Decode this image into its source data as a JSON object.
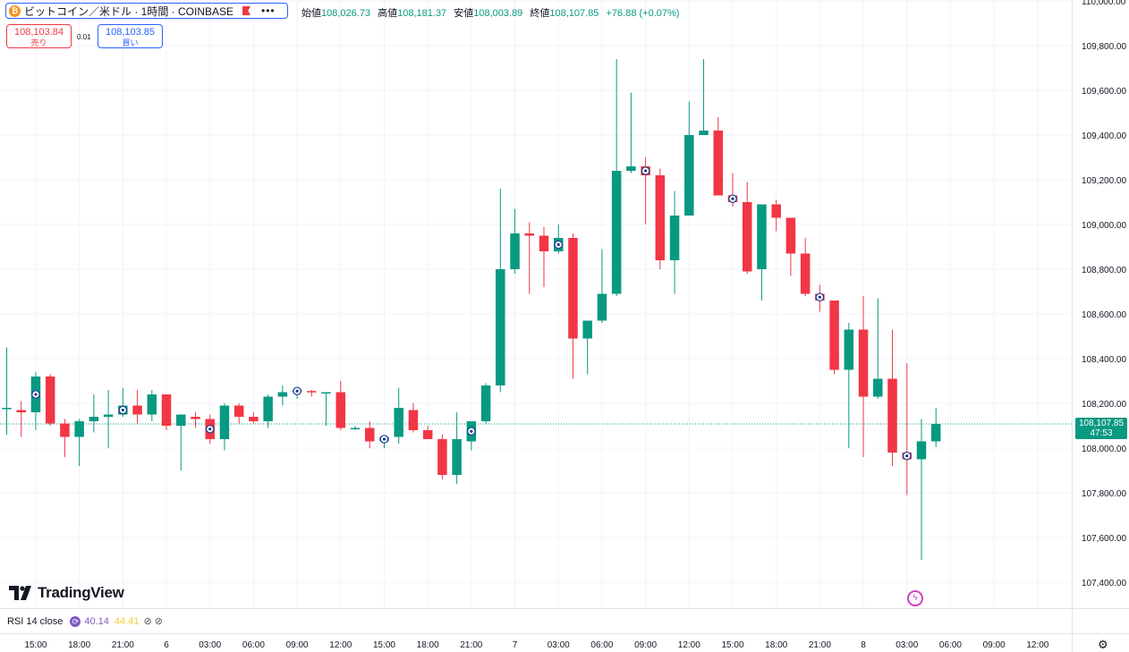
{
  "header": {
    "coin_icon": "bitcoin-icon",
    "symbol": "ビットコイン／米ドル · 1時間 · COINBASE",
    "flag_icon": "flag-icon",
    "more": "•••",
    "ohlc": {
      "o_label": "始値",
      "o": "108,026.73",
      "h_label": "高値",
      "h": "108,181.37",
      "l_label": "安値",
      "l": "108,003.89",
      "c_label": "終値",
      "c": "108,107.85",
      "chg": "+76.88 (+0.07%)"
    }
  },
  "trade": {
    "sell_price": "108,103.84",
    "sell_label": "売り",
    "spread": "0.01",
    "buy_price": "108,103.85",
    "buy_label": "買い"
  },
  "last_price": {
    "price": "108,107.85",
    "countdown": "47:53"
  },
  "brand": {
    "name": "TradingView"
  },
  "rsi": {
    "label": "RSI 14 close",
    "v1": "40.14",
    "v2": "44.41",
    "icons": "⊘ ⊘"
  },
  "colors": {
    "up": "#089981",
    "down": "#f23645",
    "accent": "#2962ff"
  },
  "chart_data": {
    "type": "candlestick",
    "ylim": [
      107300,
      110000
    ],
    "y_ticks": [
      107400,
      107600,
      107800,
      108000,
      108200,
      108400,
      108600,
      108800,
      109000,
      109200,
      109400,
      109600,
      109800,
      110000
    ],
    "y_tick_labels": [
      "107,400.00",
      "107,600.00",
      "107,800.00",
      "108,000.00",
      "108,200.00",
      "108,400.00",
      "108,600.00",
      "108,800.00",
      "109,000.00",
      "109,200.00",
      "109,400.00",
      "109,600.00",
      "109,800.00",
      "110,000.00"
    ],
    "x_ticks": [
      {
        "i": 2,
        "label": "15:00"
      },
      {
        "i": 5,
        "label": "18:00"
      },
      {
        "i": 8,
        "label": "21:00"
      },
      {
        "i": 11,
        "label": "6"
      },
      {
        "i": 14,
        "label": "03:00"
      },
      {
        "i": 17,
        "label": "06:00"
      },
      {
        "i": 20,
        "label": "09:00"
      },
      {
        "i": 23,
        "label": "12:00"
      },
      {
        "i": 26,
        "label": "15:00"
      },
      {
        "i": 29,
        "label": "18:00"
      },
      {
        "i": 32,
        "label": "21:00"
      },
      {
        "i": 35,
        "label": "7"
      },
      {
        "i": 38,
        "label": "03:00"
      },
      {
        "i": 41,
        "label": "06:00"
      },
      {
        "i": 44,
        "label": "09:00"
      },
      {
        "i": 47,
        "label": "12:00"
      },
      {
        "i": 50,
        "label": "15:00"
      },
      {
        "i": 53,
        "label": "18:00"
      },
      {
        "i": 56,
        "label": "21:00"
      },
      {
        "i": 59,
        "label": "8"
      },
      {
        "i": 62,
        "label": "03:00"
      },
      {
        "i": 65,
        "label": "06:00"
      },
      {
        "i": 68,
        "label": "09:00"
      },
      {
        "i": 71,
        "label": "12:00"
      }
    ],
    "candles": [
      {
        "o": 108180,
        "h": 108450,
        "l": 108060,
        "c": 108180
      },
      {
        "o": 108170,
        "h": 108210,
        "l": 108050,
        "c": 108160
      },
      {
        "o": 108160,
        "h": 108340,
        "l": 108080,
        "c": 108320
      },
      {
        "o": 108320,
        "h": 108330,
        "l": 108100,
        "c": 108110
      },
      {
        "o": 108110,
        "h": 108130,
        "l": 107960,
        "c": 108050
      },
      {
        "o": 108050,
        "h": 108130,
        "l": 107920,
        "c": 108120
      },
      {
        "o": 108120,
        "h": 108240,
        "l": 108070,
        "c": 108140
      },
      {
        "o": 108140,
        "h": 108260,
        "l": 108000,
        "c": 108150
      },
      {
        "o": 108150,
        "h": 108270,
        "l": 108140,
        "c": 108190
      },
      {
        "o": 108190,
        "h": 108260,
        "l": 108110,
        "c": 108150
      },
      {
        "o": 108150,
        "h": 108260,
        "l": 108120,
        "c": 108240
      },
      {
        "o": 108240,
        "h": 108240,
        "l": 108080,
        "c": 108100
      },
      {
        "o": 108100,
        "h": 108150,
        "l": 107900,
        "c": 108150
      },
      {
        "o": 108140,
        "h": 108160,
        "l": 108090,
        "c": 108130
      },
      {
        "o": 108130,
        "h": 108150,
        "l": 108020,
        "c": 108040
      },
      {
        "o": 108040,
        "h": 108200,
        "l": 107990,
        "c": 108190
      },
      {
        "o": 108190,
        "h": 108200,
        "l": 108110,
        "c": 108140
      },
      {
        "o": 108140,
        "h": 108160,
        "l": 108110,
        "c": 108120
      },
      {
        "o": 108120,
        "h": 108240,
        "l": 108090,
        "c": 108230
      },
      {
        "o": 108230,
        "h": 108280,
        "l": 108190,
        "c": 108250
      },
      {
        "o": 108250,
        "h": 108260,
        "l": 108220,
        "c": 108260
      },
      {
        "o": 108255,
        "h": 108260,
        "l": 108230,
        "c": 108250
      },
      {
        "o": 108250,
        "h": 108250,
        "l": 108100,
        "c": 108250
      },
      {
        "o": 108250,
        "h": 108300,
        "l": 108080,
        "c": 108090
      },
      {
        "o": 108090,
        "h": 108100,
        "l": 108080,
        "c": 108090
      },
      {
        "o": 108090,
        "h": 108120,
        "l": 108000,
        "c": 108030
      },
      {
        "o": 108030,
        "h": 108050,
        "l": 108000,
        "c": 108050
      },
      {
        "o": 108050,
        "h": 108270,
        "l": 108020,
        "c": 108180
      },
      {
        "o": 108170,
        "h": 108200,
        "l": 108070,
        "c": 108080
      },
      {
        "o": 108080,
        "h": 108100,
        "l": 108040,
        "c": 108040
      },
      {
        "o": 108040,
        "h": 108060,
        "l": 107860,
        "c": 107880
      },
      {
        "o": 107880,
        "h": 108160,
        "l": 107840,
        "c": 108040
      },
      {
        "o": 108030,
        "h": 108120,
        "l": 107990,
        "c": 108120
      },
      {
        "o": 108120,
        "h": 108290,
        "l": 108110,
        "c": 108280
      },
      {
        "o": 108280,
        "h": 109160,
        "l": 108250,
        "c": 108800
      },
      {
        "o": 108800,
        "h": 109070,
        "l": 108780,
        "c": 108960
      },
      {
        "o": 108960,
        "h": 109010,
        "l": 108690,
        "c": 108950
      },
      {
        "o": 108950,
        "h": 108990,
        "l": 108720,
        "c": 108880
      },
      {
        "o": 108880,
        "h": 109000,
        "l": 108870,
        "c": 108940
      },
      {
        "o": 108940,
        "h": 108960,
        "l": 108310,
        "c": 108490
      },
      {
        "o": 108490,
        "h": 108570,
        "l": 108330,
        "c": 108570
      },
      {
        "o": 108570,
        "h": 108890,
        "l": 108560,
        "c": 108690
      },
      {
        "o": 108690,
        "h": 109740,
        "l": 108680,
        "c": 109240
      },
      {
        "o": 109240,
        "h": 109590,
        "l": 109230,
        "c": 109260
      },
      {
        "o": 109260,
        "h": 109300,
        "l": 109000,
        "c": 109220
      },
      {
        "o": 109220,
        "h": 109250,
        "l": 108800,
        "c": 108840
      },
      {
        "o": 108840,
        "h": 109150,
        "l": 108690,
        "c": 109040
      },
      {
        "o": 109040,
        "h": 109550,
        "l": 109040,
        "c": 109400
      },
      {
        "o": 109400,
        "h": 109740,
        "l": 109400,
        "c": 109420
      },
      {
        "o": 109420,
        "h": 109480,
        "l": 109130,
        "c": 109130
      },
      {
        "o": 109130,
        "h": 109230,
        "l": 109080,
        "c": 109100
      },
      {
        "o": 109100,
        "h": 109190,
        "l": 108780,
        "c": 108790
      },
      {
        "o": 108800,
        "h": 109090,
        "l": 108660,
        "c": 109090
      },
      {
        "o": 109090,
        "h": 109110,
        "l": 108970,
        "c": 109030
      },
      {
        "o": 109030,
        "h": 109030,
        "l": 108770,
        "c": 108870
      },
      {
        "o": 108870,
        "h": 108940,
        "l": 108680,
        "c": 108690
      },
      {
        "o": 108690,
        "h": 108730,
        "l": 108610,
        "c": 108660
      },
      {
        "o": 108660,
        "h": 108660,
        "l": 108330,
        "c": 108350
      },
      {
        "o": 108350,
        "h": 108560,
        "l": 108000,
        "c": 108530
      },
      {
        "o": 108530,
        "h": 108680,
        "l": 107960,
        "c": 108230
      },
      {
        "o": 108230,
        "h": 108670,
        "l": 108220,
        "c": 108310
      },
      {
        "o": 108310,
        "h": 108530,
        "l": 107920,
        "c": 107980
      },
      {
        "o": 107980,
        "h": 108380,
        "l": 107790,
        "c": 107950
      },
      {
        "o": 107950,
        "h": 108130,
        "l": 107500,
        "c": 108030
      },
      {
        "o": 108030,
        "h": 108181,
        "l": 108004,
        "c": 108108
      }
    ],
    "markers": [
      2,
      8,
      14,
      20,
      26,
      32,
      38,
      44,
      50,
      56,
      62
    ]
  }
}
